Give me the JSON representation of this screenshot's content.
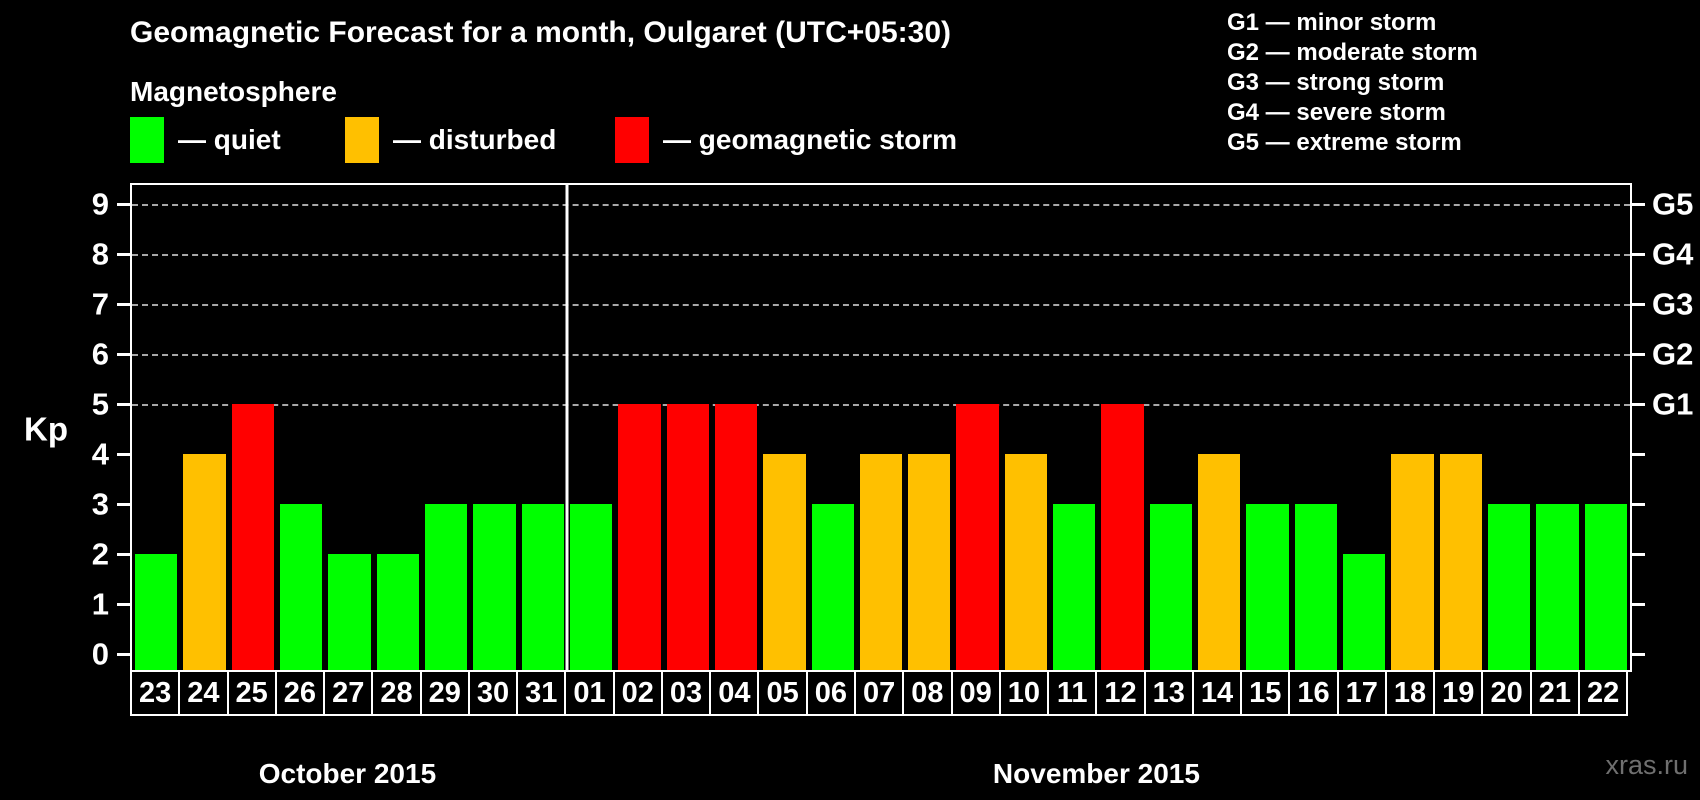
{
  "title": "Geomagnetic Forecast for a month, Oulgaret (UTC+05:30)",
  "magnetosphere": {
    "heading": "Magnetosphere",
    "items": [
      {
        "state": "quiet",
        "label": "— quiet"
      },
      {
        "state": "disturbed",
        "label": "— disturbed"
      },
      {
        "state": "storm",
        "label": "— geomagnetic storm"
      }
    ]
  },
  "storm_legend": [
    {
      "code": "G1",
      "label": "G1 — minor storm"
    },
    {
      "code": "G2",
      "label": "G2 — moderate storm"
    },
    {
      "code": "G3",
      "label": "G3 — strong storm"
    },
    {
      "code": "G4",
      "label": "G4 — severe storm"
    },
    {
      "code": "G5",
      "label": "G5 — extreme storm"
    }
  ],
  "watermark": "xras.ru",
  "chart_data": {
    "type": "bar",
    "title": "Geomagnetic Forecast for a month, Oulgaret (UTC+05:30)",
    "ylabel": "Kp",
    "ylim": [
      0,
      9
    ],
    "yticks": [
      0,
      1,
      2,
      3,
      4,
      5,
      6,
      7,
      8,
      9
    ],
    "gridlines": [
      5,
      6,
      7,
      8,
      9
    ],
    "grid_style": "dashed gray horizontal lines at Kp 5 through 9",
    "right_axis": [
      {
        "kp": 5,
        "label": "G1"
      },
      {
        "kp": 6,
        "label": "G2"
      },
      {
        "kp": 7,
        "label": "G3"
      },
      {
        "kp": 8,
        "label": "G4"
      },
      {
        "kp": 9,
        "label": "G5"
      }
    ],
    "colors": {
      "quiet": "#00ff00",
      "disturbed": "#ffc000",
      "storm": "#ff0000"
    },
    "months": [
      {
        "label": "October 2015",
        "days": [
          "23",
          "24",
          "25",
          "26",
          "27",
          "28",
          "29",
          "30",
          "31"
        ]
      },
      {
        "label": "November 2015",
        "days": [
          "01",
          "02",
          "03",
          "04",
          "05",
          "06",
          "07",
          "08",
          "09",
          "10",
          "11",
          "12",
          "13",
          "14",
          "15",
          "16",
          "17",
          "18",
          "19",
          "20",
          "21",
          "22"
        ]
      }
    ],
    "points": [
      {
        "day": "23",
        "kp": 2,
        "state": "quiet"
      },
      {
        "day": "24",
        "kp": 4,
        "state": "disturbed"
      },
      {
        "day": "25",
        "kp": 5,
        "state": "storm"
      },
      {
        "day": "26",
        "kp": 3,
        "state": "quiet"
      },
      {
        "day": "27",
        "kp": 2,
        "state": "quiet"
      },
      {
        "day": "28",
        "kp": 2,
        "state": "quiet"
      },
      {
        "day": "29",
        "kp": 3,
        "state": "quiet"
      },
      {
        "day": "30",
        "kp": 3,
        "state": "quiet"
      },
      {
        "day": "31",
        "kp": 3,
        "state": "quiet"
      },
      {
        "day": "01",
        "kp": 3,
        "state": "quiet"
      },
      {
        "day": "02",
        "kp": 5,
        "state": "storm"
      },
      {
        "day": "03",
        "kp": 5,
        "state": "storm"
      },
      {
        "day": "04",
        "kp": 5,
        "state": "storm"
      },
      {
        "day": "05",
        "kp": 4,
        "state": "disturbed"
      },
      {
        "day": "06",
        "kp": 3,
        "state": "quiet"
      },
      {
        "day": "07",
        "kp": 4,
        "state": "disturbed"
      },
      {
        "day": "08",
        "kp": 4,
        "state": "disturbed"
      },
      {
        "day": "09",
        "kp": 5,
        "state": "storm"
      },
      {
        "day": "10",
        "kp": 4,
        "state": "disturbed"
      },
      {
        "day": "11",
        "kp": 3,
        "state": "quiet"
      },
      {
        "day": "12",
        "kp": 5,
        "state": "storm"
      },
      {
        "day": "13",
        "kp": 3,
        "state": "quiet"
      },
      {
        "day": "14",
        "kp": 4,
        "state": "disturbed"
      },
      {
        "day": "15",
        "kp": 3,
        "state": "quiet"
      },
      {
        "day": "16",
        "kp": 3,
        "state": "quiet"
      },
      {
        "day": "17",
        "kp": 2,
        "state": "quiet"
      },
      {
        "day": "18",
        "kp": 4,
        "state": "disturbed"
      },
      {
        "day": "19",
        "kp": 4,
        "state": "disturbed"
      },
      {
        "day": "20",
        "kp": 3,
        "state": "quiet"
      },
      {
        "day": "21",
        "kp": 3,
        "state": "quiet"
      },
      {
        "day": "22",
        "kp": 3,
        "state": "quiet"
      }
    ]
  }
}
